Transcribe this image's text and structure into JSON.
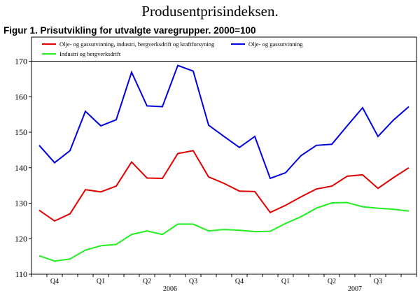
{
  "header": {
    "page_heading": "Produsentprisindeksen.",
    "figure_title": "Figur 1. Prisutvikling for utvalgte varegrupper. 2000=100"
  },
  "chart_data": {
    "type": "line",
    "title": "Figur 1. Prisutvikling for utvalgte varegrupper. 2000=100",
    "xlabel": "",
    "ylabel": "",
    "ylim": [
      110,
      170
    ],
    "yticks": [
      110,
      120,
      130,
      140,
      150,
      160,
      170
    ],
    "grid": false,
    "legend_position": "top",
    "x": [
      "2005-10",
      "2005-11",
      "2005-12",
      "2006-01",
      "2006-02",
      "2006-03",
      "2006-04",
      "2006-05",
      "2006-06",
      "2006-07",
      "2006-08",
      "2006-09",
      "2006-10",
      "2006-11",
      "2006-12",
      "2007-01",
      "2007-02",
      "2007-03",
      "2007-04",
      "2007-05",
      "2007-06",
      "2007-07",
      "2007-08",
      "2007-09",
      "2007-10"
    ],
    "quarter_labels": [
      {
        "label": "Q4",
        "month_index": 1
      },
      {
        "label": "Q1",
        "month_index": 4
      },
      {
        "label": "Q2",
        "month_index": 7
      },
      {
        "label": "Q3",
        "month_index": 10
      },
      {
        "label": "Q4",
        "month_index": 13
      },
      {
        "label": "Q1",
        "month_index": 16
      },
      {
        "label": "Q2",
        "month_index": 19
      },
      {
        "label": "Q3",
        "month_index": 22
      }
    ],
    "year_labels": [
      {
        "label": "2006",
        "month_index": 8.5
      },
      {
        "label": "2007",
        "month_index": 20.5
      }
    ],
    "series": [
      {
        "name": "Olje- og gassutvinning, industri, bergverksdrift og kraftforsyning",
        "color": "#e00000",
        "values": [
          128.0,
          125.0,
          127.0,
          133.8,
          133.2,
          134.8,
          141.6,
          137.1,
          137.0,
          144.0,
          144.8,
          137.4,
          135.6,
          133.4,
          133.3,
          127.4,
          129.4,
          131.8,
          134.0,
          134.8,
          137.6,
          138.0,
          134.2,
          137.2,
          140.0
        ]
      },
      {
        "name": "Olje- og gassutvinning",
        "color": "#0000e0",
        "values": [
          146.3,
          141.4,
          144.8,
          155.9,
          151.8,
          153.5,
          166.9,
          157.4,
          157.2,
          168.8,
          167.2,
          152.0,
          148.8,
          145.7,
          148.8,
          137.0,
          138.6,
          143.4,
          146.3,
          146.6,
          151.8,
          156.9,
          148.8,
          153.4,
          157.2
        ]
      },
      {
        "name": "Industri og bergverksdrift",
        "color": "#22ee22",
        "values": [
          115.2,
          113.7,
          114.3,
          116.8,
          118.0,
          118.4,
          121.2,
          122.2,
          121.2,
          124.1,
          124.1,
          122.2,
          122.6,
          122.4,
          122.0,
          122.1,
          124.3,
          126.2,
          128.6,
          130.1,
          130.2,
          129.0,
          128.6,
          128.3,
          127.8
        ]
      }
    ]
  }
}
